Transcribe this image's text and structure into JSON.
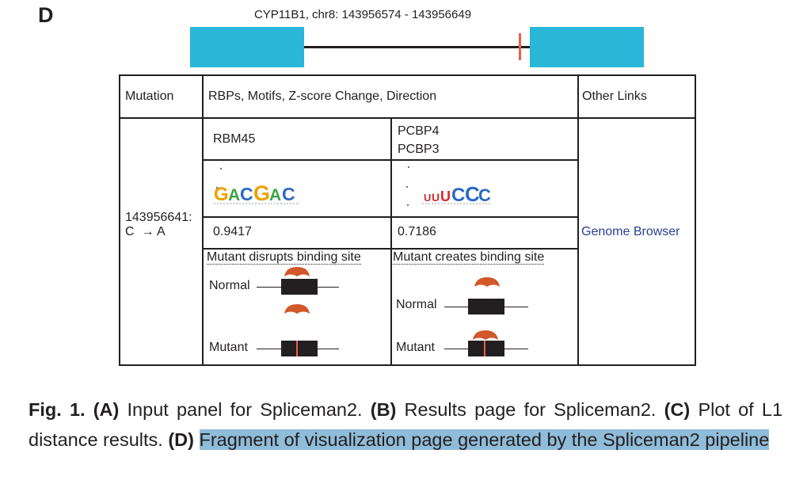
{
  "panel": {
    "label": "D"
  },
  "gene": {
    "title": "CYP11B1, chr8: 143956574 - 143956649",
    "exon_color": "#29b6d8",
    "site_color": "#e95f4f"
  },
  "table": {
    "headers": [
      "Mutation",
      "RBPs, Motifs, Z-score Change, Direction",
      "Other Links"
    ],
    "mutation": {
      "position": "143956641:",
      "change": "C  → A"
    },
    "rbps": [
      {
        "names": [
          "RBM45"
        ],
        "motif": "GACGAC",
        "zscore": "0.9417",
        "direction": "Mutant disrupts binding site",
        "normal_label": "Normal",
        "mutant_label": "Mutant"
      },
      {
        "names": [
          "PCBP4",
          "PCBP3"
        ],
        "motif": "UUUCCC",
        "zscore": "0.7186",
        "direction": "Mutant creates binding site",
        "normal_label": "Normal",
        "mutant_label": "Mutant"
      }
    ],
    "other_link": "Genome Browser",
    "link_color": "#2a3f8f",
    "rbp_color": "#d2582a"
  },
  "caption": {
    "fig": "Fig. 1.",
    "a_label": "(A)",
    "a_text": " Input panel for Spliceman2. ",
    "b_label": "(B)",
    "b_text": " Results page for Spliceman2. ",
    "c_label": "(C)",
    "c_text": " Plot of L1 distance results. ",
    "d_label": "(D)",
    "d_text": "Fragment of visualization page generated by the Spliceman2 pipeline",
    "highlight_color": "#8fbcd8"
  }
}
